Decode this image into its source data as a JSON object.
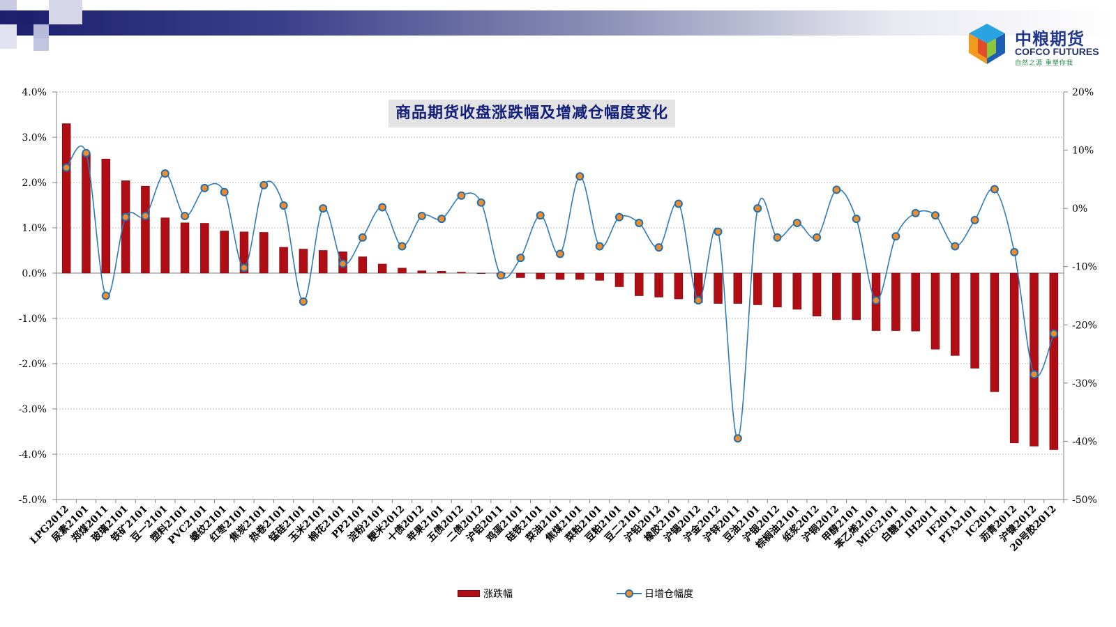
{
  "logo": {
    "name_cn": "中粮期货",
    "name_en": "COFCO FUTURES",
    "tagline": "自然之源 重塑你我"
  },
  "colors": {
    "bar": "#b00d14",
    "line": "#2e7ab8",
    "marker_fill": "#f08c2a",
    "marker_edge": "#1f6fb0",
    "header_dark": "#1b1f6e"
  },
  "chart_data": {
    "type": "bar+line",
    "title": "商品期货收盘涨跌幅及增减仓幅度变化",
    "categories": [
      "LPG2012",
      "尿素2101",
      "郑煤2011",
      "玻璃2101",
      "铁矿2101",
      "豆一2101",
      "塑料2101",
      "PVC2101",
      "螺纹2101",
      "红枣2101",
      "焦炭2101",
      "热卷2101",
      "锰硅2101",
      "玉米2101",
      "棉花2101",
      "PP2101",
      "淀粉2101",
      "粳米2012",
      "十债2012",
      "苹果2101",
      "五债2012",
      "二债2012",
      "沪铝2011",
      "鸡蛋2101",
      "硅铁2101",
      "菜油2101",
      "焦煤2101",
      "菜粕2101",
      "豆粕2101",
      "豆二2101",
      "沪铅2012",
      "橡胶2101",
      "沪锡2012",
      "沪金2012",
      "沪锌2011",
      "豆油2101",
      "沪银2012",
      "棕榈油2101",
      "纸浆2012",
      "沪铜2012",
      "甲醇2101",
      "苯乙烯2101",
      "MEG2101",
      "白糖2101",
      "IH2011",
      "IF2011",
      "PTA2101",
      "IC2011",
      "沥青2012",
      "沪镍2012",
      "20号胶2012"
    ],
    "series": [
      {
        "name": "涨跌幅",
        "type": "bar",
        "axis": "left",
        "values": [
          3.3,
          2.65,
          2.52,
          2.04,
          1.92,
          1.22,
          1.11,
          1.1,
          0.93,
          0.91,
          0.9,
          0.57,
          0.53,
          0.5,
          0.47,
          0.36,
          0.2,
          0.11,
          0.05,
          0.04,
          0.02,
          0.0,
          -0.05,
          -0.1,
          -0.13,
          -0.14,
          -0.14,
          -0.16,
          -0.3,
          -0.5,
          -0.53,
          -0.57,
          -0.65,
          -0.67,
          -0.67,
          -0.7,
          -0.75,
          -0.8,
          -0.95,
          -1.03,
          -1.03,
          -1.27,
          -1.27,
          -1.28,
          -1.68,
          -1.82,
          -2.1,
          -2.62,
          -3.75,
          -3.82,
          -3.9
        ]
      },
      {
        "name": "日增仓幅度",
        "type": "line",
        "axis": "right",
        "values": [
          7.0,
          9.5,
          -15.0,
          -1.5,
          -1.3,
          6.0,
          -1.3,
          3.5,
          2.8,
          -10.2,
          4.0,
          0.5,
          -16.0,
          0.0,
          -9.5,
          -5.0,
          0.2,
          -6.5,
          -1.3,
          -1.8,
          2.2,
          1.0,
          -11.5,
          -8.5,
          -1.2,
          -7.8,
          5.5,
          -6.5,
          -1.5,
          -2.5,
          -6.7,
          0.8,
          -15.8,
          -4.0,
          -39.5,
          0.0,
          -5.0,
          -2.5,
          -5.0,
          3.2,
          -1.8,
          -15.8,
          -4.8,
          -0.8,
          -1.2,
          -6.5,
          -2.0,
          3.3,
          -7.5,
          -28.5,
          -21.5
        ]
      }
    ],
    "y_left": {
      "min": -5.0,
      "max": 4.0,
      "step": 1.0,
      "ticks": [
        "-5.0%",
        "-4.0%",
        "-3.0%",
        "-2.0%",
        "-1.0%",
        "0.0%",
        "1.0%",
        "2.0%",
        "3.0%",
        "4.0%"
      ]
    },
    "y_right": {
      "min": -50,
      "max": 20,
      "step": 10,
      "ticks": [
        "-50%",
        "-40%",
        "-30%",
        "-20%",
        "-10%",
        "0%",
        "10%",
        "20%"
      ]
    },
    "grid": true,
    "legend_position": "bottom"
  }
}
